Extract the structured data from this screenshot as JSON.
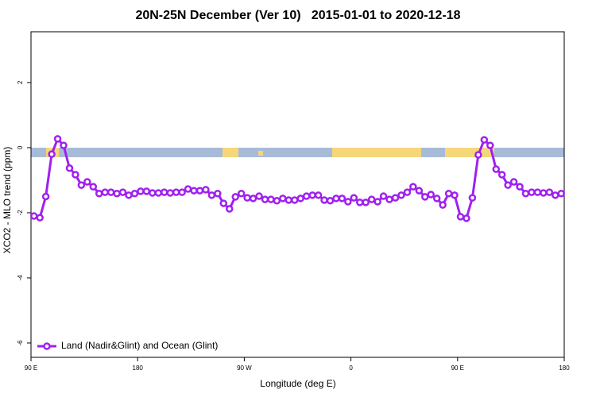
{
  "chart_data": {
    "type": "line",
    "title": "20N-25N December (Ver 10)   2015-01-01 to 2020-12-18",
    "x_label": "Longitude (deg E)",
    "y_label": "XCO2 - MLO trend (ppm)",
    "xlim": [
      90,
      540
    ],
    "ylim": [
      -6.44,
      3.56
    ],
    "xticks": [
      {
        "value": 90,
        "label": "90 E"
      },
      180,
      {
        "value": 270,
        "label": "90 W"
      },
      {
        "value": 360,
        "label": "0"
      },
      {
        "value": 450,
        "label": "90 E"
      },
      {
        "value": 540,
        "label": "180"
      }
    ],
    "yticks": [
      2,
      0,
      -2,
      -4,
      -6
    ],
    "legend": "bottom-left",
    "x": [
      92.5,
      97.5,
      102.5,
      107.5,
      112.5,
      117.5,
      122.5,
      127.5,
      132.5,
      137.5,
      142.5,
      147.5,
      152.5,
      157.5,
      162.5,
      167.5,
      172.5,
      177.5,
      182.5,
      187.5,
      192.5,
      197.5,
      202.5,
      207.5,
      212.5,
      217.5,
      222.5,
      227.5,
      232.5,
      237.5,
      242.5,
      247.5,
      252.5,
      257.5,
      262.5,
      267.5,
      272.5,
      277.5,
      282.5,
      287.5,
      292.5,
      297.5,
      302.5,
      307.5,
      312.5,
      317.5,
      322.5,
      327.5,
      332.5,
      337.5,
      342.5,
      347.5,
      352.5,
      357.5,
      362.5,
      367.5,
      372.5,
      377.5,
      382.5,
      387.5,
      392.5,
      397.5,
      402.5,
      407.5,
      412.5,
      417.5,
      422.5,
      427.5,
      432.5,
      437.5,
      442.5,
      447.5,
      452.5,
      457.5,
      462.5,
      467.5,
      472.5,
      477.5,
      482.5,
      487.5,
      492.5,
      497.5,
      502.5,
      507.5,
      512.5,
      517.5,
      522.5,
      527.5,
      532.5,
      537.5
    ],
    "series": [
      {
        "name": "Land (Nadir&Glint) and Ocean (Glint)",
        "color": "#a020f0",
        "values": [
          -2.1,
          -2.15,
          -1.5,
          -0.2,
          0.27,
          0.07,
          -0.63,
          -0.83,
          -1.15,
          -1.05,
          -1.2,
          -1.41,
          -1.37,
          -1.37,
          -1.41,
          -1.37,
          -1.46,
          -1.41,
          -1.34,
          -1.34,
          -1.39,
          -1.39,
          -1.37,
          -1.39,
          -1.37,
          -1.37,
          -1.27,
          -1.32,
          -1.32,
          -1.29,
          -1.46,
          -1.41,
          -1.71,
          -1.88,
          -1.51,
          -1.41,
          -1.54,
          -1.56,
          -1.49,
          -1.59,
          -1.59,
          -1.63,
          -1.56,
          -1.61,
          -1.61,
          -1.56,
          -1.49,
          -1.46,
          -1.46,
          -1.61,
          -1.63,
          -1.56,
          -1.56,
          -1.66,
          -1.54,
          -1.68,
          -1.68,
          -1.59,
          -1.66,
          -1.49,
          -1.59,
          -1.54,
          -1.46,
          -1.37,
          -1.2,
          -1.32,
          -1.51,
          -1.44,
          -1.56,
          -1.76,
          -1.41,
          -1.46,
          -2.12,
          -2.17,
          -1.54,
          -0.22,
          0.24,
          0.07,
          -0.66,
          -0.83,
          -1.15,
          -1.05,
          -1.2,
          -1.41,
          -1.37,
          -1.37,
          -1.39,
          -1.37,
          -1.46,
          -1.41
        ]
      }
    ]
  }
}
